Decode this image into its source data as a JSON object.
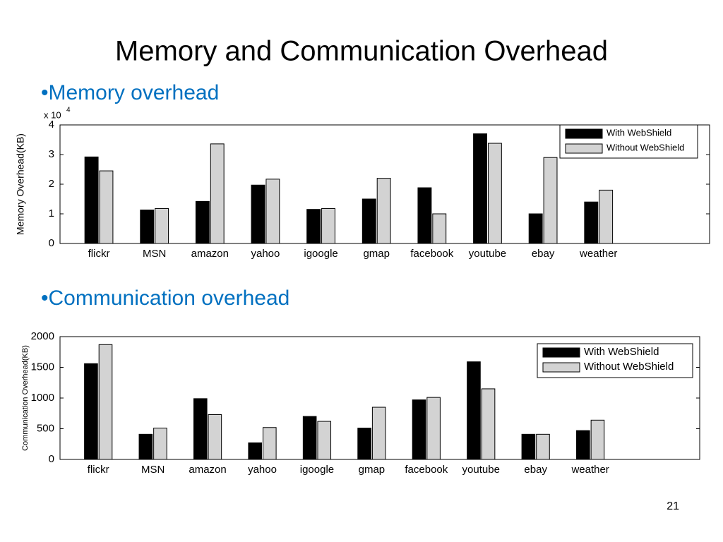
{
  "slide": {
    "title": "Memory and Communication Overhead",
    "page_number": "21"
  },
  "chart_data": [
    {
      "type": "bar",
      "title": "•Memory overhead",
      "y_label": "Memory Overhead(KB)",
      "y_multiplier": {
        "base": "x 10",
        "exponent": "4"
      },
      "categories": [
        "flickr",
        "MSN",
        "amazon",
        "yahoo",
        "igoogle",
        "gmap",
        "facebook",
        "youtube",
        "ebay",
        "weather"
      ],
      "series": [
        {
          "name": "With WebShield",
          "color": "#000000",
          "values": [
            2.92,
            1.13,
            1.42,
            1.97,
            1.15,
            1.5,
            1.88,
            3.7,
            1.0,
            1.4
          ]
        },
        {
          "name": "Without WebShield",
          "color": "#d3d3d3",
          "values": [
            2.45,
            1.18,
            3.36,
            2.17,
            1.18,
            2.2,
            1.0,
            3.38,
            2.9,
            1.8
          ]
        }
      ],
      "ylim": [
        0,
        4
      ],
      "yticks": [
        0,
        1,
        2,
        3,
        4
      ],
      "grid": false,
      "legend": "top-right"
    },
    {
      "type": "bar",
      "title": "•Communication overhead",
      "y_label": "Communication Overhead(KB)",
      "categories": [
        "flickr",
        "MSN",
        "amazon",
        "yahoo",
        "igoogle",
        "gmap",
        "facebook",
        "youtube",
        "ebay",
        "weather"
      ],
      "series": [
        {
          "name": "With WebShield",
          "color": "#000000",
          "values": [
            1560,
            410,
            990,
            270,
            700,
            510,
            970,
            1590,
            410,
            470
          ]
        },
        {
          "name": "Without WebShield",
          "color": "#d3d3d3",
          "values": [
            1870,
            510,
            730,
            520,
            620,
            850,
            1010,
            1150,
            410,
            640
          ]
        }
      ],
      "ylim": [
        0,
        2000
      ],
      "yticks": [
        0,
        500,
        1000,
        1500,
        2000
      ],
      "grid": false,
      "legend": "top-right"
    }
  ]
}
